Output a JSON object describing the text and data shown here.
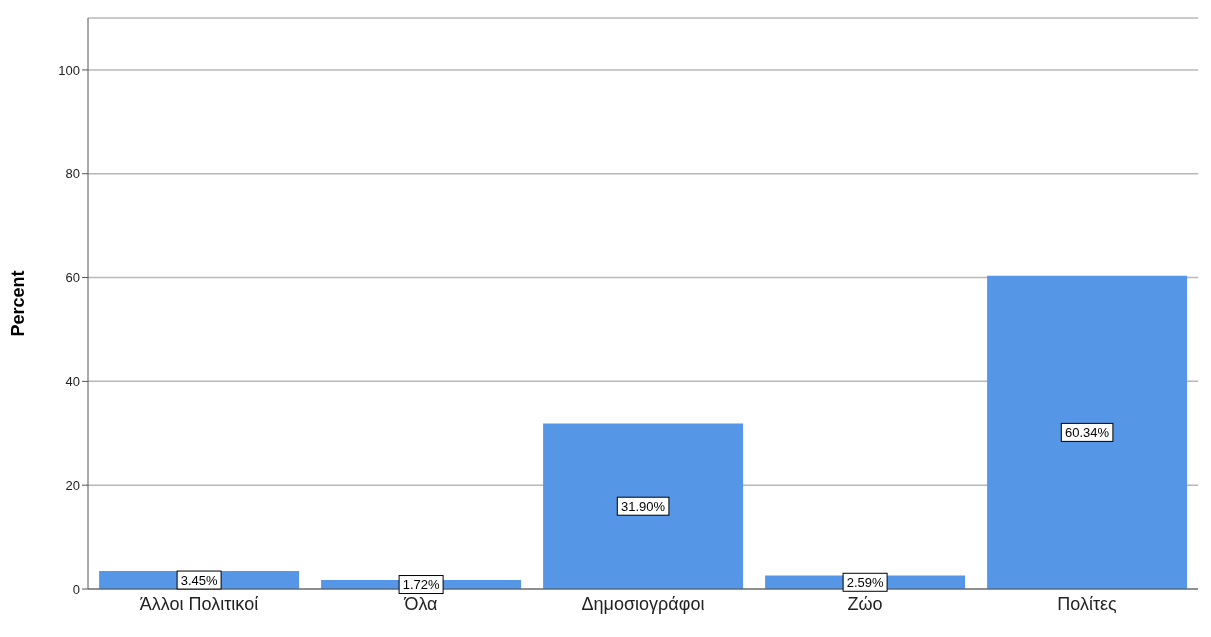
{
  "chart_data": {
    "type": "bar",
    "ylabel": "Percent",
    "categories": [
      "Άλλοι Πολιτικοί",
      "Όλα",
      "Δημοσιογράφοι",
      "Ζώο",
      "Πολίτες"
    ],
    "values": [
      3.45,
      1.72,
      31.9,
      2.59,
      60.34
    ],
    "value_labels": [
      "3.45%",
      "1.72%",
      "31.90%",
      "2.59%",
      "60.34%"
    ],
    "color": "#5596e6",
    "ylim": [
      0,
      110
    ],
    "yticks": [
      0,
      20,
      40,
      60,
      80,
      100
    ],
    "grid": "y",
    "legend": false
  }
}
